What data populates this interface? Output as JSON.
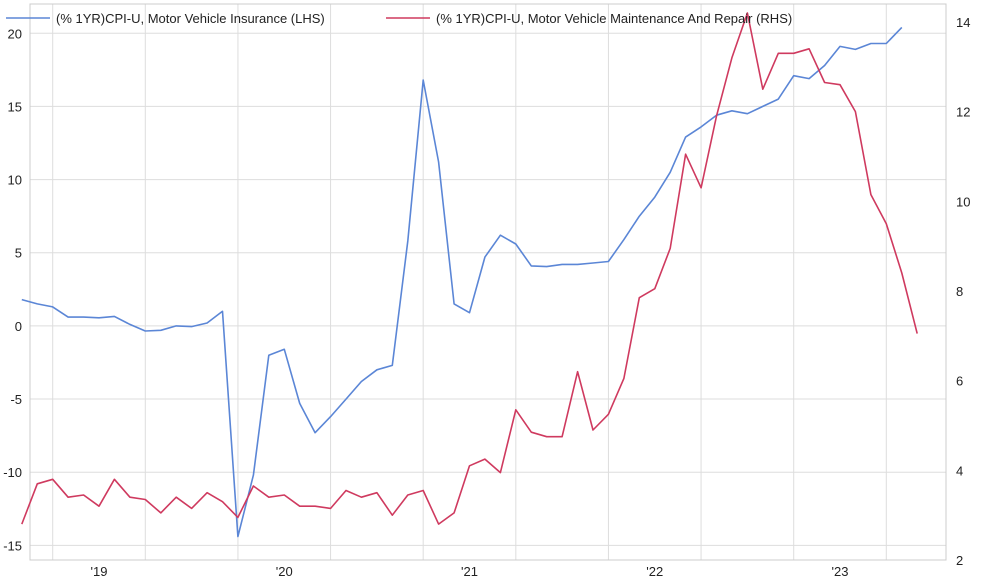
{
  "chart_data": {
    "type": "line",
    "title": "",
    "xlabel": "",
    "legend_position": "top-left",
    "grid": true,
    "x_tick_labels": [
      "'19",
      "'20",
      "'21",
      "'22",
      "'23"
    ],
    "x_tick_years": [
      2019,
      2020,
      2021,
      2022,
      2023
    ],
    "y_left": {
      "ticks": [
        20,
        15,
        10,
        5,
        0,
        -5,
        -10,
        -15
      ],
      "labels": [
        "20",
        "15",
        "10",
        "5",
        "0",
        "-5",
        "-10",
        "-15"
      ],
      "range": [
        -16,
        22
      ]
    },
    "y_right": {
      "ticks": [
        14,
        12,
        10,
        8,
        6,
        4,
        2
      ],
      "labels": [
        "14",
        "12",
        "10",
        "8",
        "6",
        "4",
        "2"
      ],
      "range": [
        2,
        14.4
      ]
    },
    "series": [
      {
        "name": "(% 1YR)CPI-U, Motor Vehicle Insurance (LHS)",
        "axis": "left",
        "color": "#5b86d6",
        "start": "2018-08",
        "values": [
          1.8,
          1.5,
          1.3,
          0.6,
          0.6,
          0.55,
          0.65,
          0.1,
          -0.35,
          -0.3,
          0.0,
          -0.05,
          0.2,
          1.0,
          -14.4,
          -10.2,
          -2.0,
          -1.6,
          -5.3,
          -7.3,
          -6.2,
          -5.0,
          -3.8,
          -3.0,
          -2.7,
          5.8,
          16.8,
          11.2,
          1.5,
          0.9,
          4.7,
          6.2,
          5.6,
          4.1,
          4.05,
          4.2,
          4.2,
          4.3,
          4.4,
          5.9,
          7.5,
          8.8,
          10.5,
          12.9,
          13.6,
          14.4,
          14.7,
          14.5,
          15.0,
          15.5,
          17.1,
          16.9,
          17.8,
          19.1,
          18.9,
          19.3,
          19.3,
          20.4
        ]
      },
      {
        "name": "(% 1YR)CPI-U, Motor Vehicle Maintenance And Repair (RHS)",
        "axis": "right",
        "color": "#cf3a5f",
        "start": "2018-08",
        "values": [
          2.8,
          3.7,
          3.8,
          3.4,
          3.45,
          3.2,
          3.8,
          3.4,
          3.35,
          3.05,
          3.4,
          3.15,
          3.5,
          3.3,
          2.95,
          3.65,
          3.4,
          3.45,
          3.2,
          3.2,
          3.15,
          3.55,
          3.4,
          3.5,
          3.0,
          3.45,
          3.55,
          2.8,
          3.05,
          4.1,
          4.25,
          3.95,
          5.35,
          4.85,
          4.75,
          4.75,
          6.2,
          4.9,
          5.25,
          6.05,
          7.85,
          8.05,
          8.95,
          11.05,
          10.3,
          11.9,
          13.2,
          14.2,
          12.5,
          13.3,
          13.3,
          13.4,
          12.65,
          12.6,
          12.0,
          10.15,
          9.5,
          8.4,
          7.05
        ]
      }
    ]
  }
}
